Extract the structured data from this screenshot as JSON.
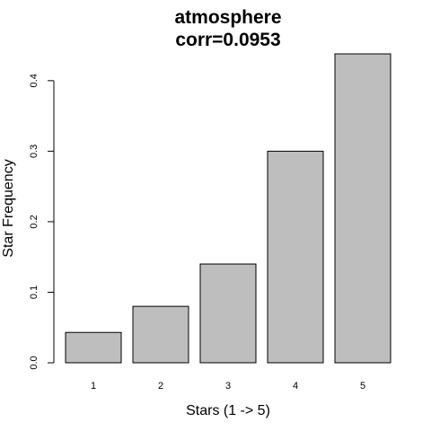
{
  "chart_data": {
    "type": "bar",
    "title": "atmosphere",
    "subtitle": "corr=0.0953",
    "xlabel": "Stars (1 -> 5)",
    "ylabel": "Star Frequency",
    "categories": [
      "1",
      "2",
      "3",
      "4",
      "5"
    ],
    "values": [
      0.043,
      0.08,
      0.14,
      0.3,
      0.438
    ],
    "ylim": [
      0,
      0.438
    ],
    "yticks": [
      0.0,
      0.1,
      0.2,
      0.3,
      0.4
    ],
    "ytick_labels": [
      "0.0",
      "0.1",
      "0.2",
      "0.3",
      "0.4"
    ],
    "bar_color": "#bebebe",
    "bar_edge_color": "#000000",
    "grid": false,
    "legend": "none"
  }
}
